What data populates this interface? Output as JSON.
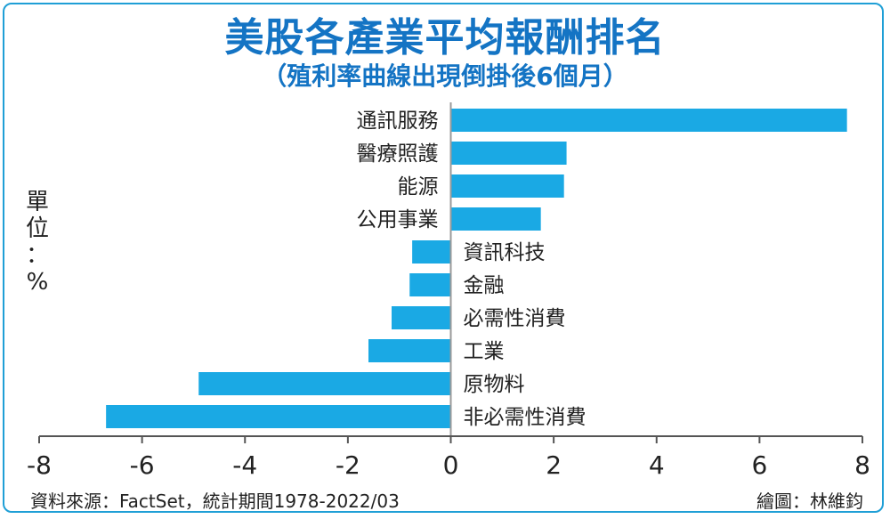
{
  "title": "美股各產業平均報酬排名",
  "subtitle": "（殖利率曲線出現倒掛後6個月）",
  "unit_label": [
    "單",
    "位",
    "：",
    "%"
  ],
  "source": "資料來源：FactSet，統計期間1978-2022/03",
  "credit": "繪圖：林維鈞",
  "colors": {
    "bar": "#1aa9e4",
    "title": "#1474c4",
    "frame": "#1f9fd6",
    "axis": "#555555"
  },
  "chart_data": {
    "type": "bar",
    "orientation": "horizontal",
    "categories": [
      "通訊服務",
      "醫療照護",
      "能源",
      "公用事業",
      "資訊科技",
      "金融",
      "必需性消費",
      "工業",
      "原物料",
      "非必需性消費"
    ],
    "values": [
      7.7,
      2.25,
      2.2,
      1.75,
      -0.75,
      -0.8,
      -1.15,
      -1.6,
      -4.9,
      -6.7
    ],
    "xlim": [
      -8,
      8
    ],
    "xticks": [
      -8,
      -6,
      -4,
      -2,
      0,
      2,
      4,
      6,
      8
    ],
    "xtick_labels": [
      "-8",
      "-6",
      "-4",
      "-2",
      "0",
      "2",
      "4",
      "6",
      "8"
    ]
  }
}
